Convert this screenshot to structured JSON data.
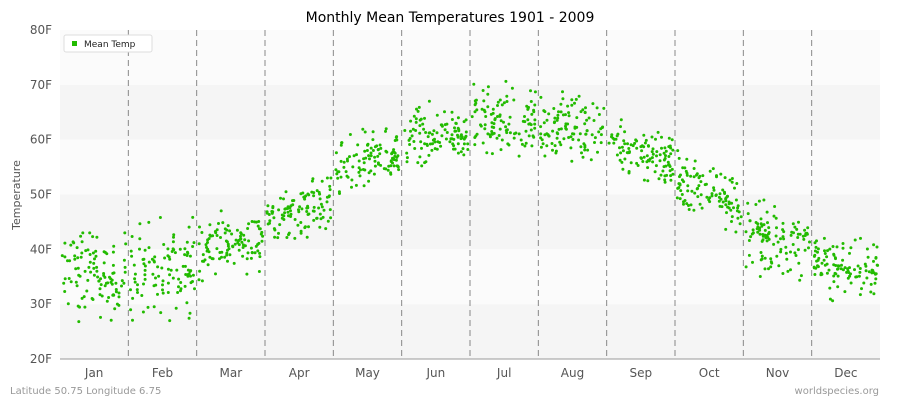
{
  "chart_data": {
    "type": "scatter",
    "title": "Monthly Mean Temperatures 1901 - 2009",
    "ylabel": "Temperature",
    "xlabel": "",
    "ylim": [
      20,
      80
    ],
    "y_ticks": [
      "20F",
      "30F",
      "40F",
      "50F",
      "60F",
      "70F",
      "80F"
    ],
    "categories": [
      "Jan",
      "Feb",
      "Mar",
      "Apr",
      "May",
      "Jun",
      "Jul",
      "Aug",
      "Sep",
      "Oct",
      "Nov",
      "Dec"
    ],
    "series": [
      {
        "name": "Mean Temp",
        "color": "#22bb00",
        "month_ranges": [
          [
            22,
            43
          ],
          [
            23,
            46
          ],
          [
            34,
            47
          ],
          [
            42,
            53
          ],
          [
            50,
            62
          ],
          [
            55,
            67
          ],
          [
            57,
            73
          ],
          [
            55,
            70
          ],
          [
            51,
            65
          ],
          [
            43,
            58
          ],
          [
            33,
            49
          ],
          [
            28,
            42
          ]
        ],
        "month_means": [
          35.5,
          36.0,
          41.0,
          47.0,
          56.0,
          61.0,
          63.5,
          62.5,
          58.0,
          50.5,
          41.5,
          36.5
        ],
        "points_per_month": 109
      }
    ],
    "legend": {
      "position": "top-left"
    },
    "grid": {
      "horizontal_bands": true,
      "vertical_dashed_month_separators": true
    }
  },
  "footer": {
    "location": "Latitude 50.75 Longitude 6.75",
    "source": "worldspecies.org"
  }
}
